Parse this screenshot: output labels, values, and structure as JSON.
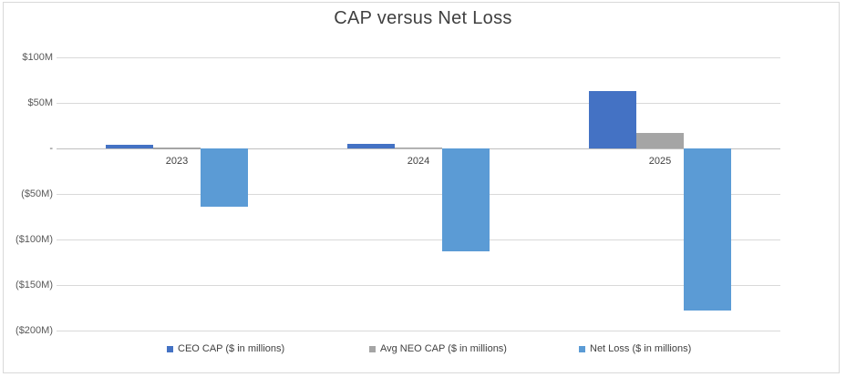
{
  "chart_data": {
    "type": "bar",
    "title": "CAP versus Net Loss",
    "categories": [
      "2023",
      "2024",
      "2025"
    ],
    "series": [
      {
        "name": "CEO CAP ($ in millions)",
        "color": "#4472C4",
        "values": [
          4,
          5,
          63
        ]
      },
      {
        "name": "Avg NEO CAP ($ in millions)",
        "color": "#A5A5A5",
        "values": [
          1.5,
          0.8,
          17
        ]
      },
      {
        "name": "Net Loss ($ in millions)",
        "color": "#5B9BD5",
        "values": [
          -64,
          -113,
          -178
        ]
      }
    ],
    "xlabel": "",
    "ylabel": "",
    "ylim": [
      -200,
      100
    ],
    "yticks": [
      100,
      50,
      0,
      -50,
      -100,
      -150,
      -200
    ],
    "ytick_labels": [
      "$100M",
      "$50M",
      "-",
      "($50M)",
      "($100M)",
      "($150M)",
      "($200M)"
    ],
    "grid": true,
    "legend_position": "bottom"
  },
  "colors": {
    "border": "#D9D9D9",
    "gridline": "#D9D9D9",
    "zero_axis": "#BFBFBF",
    "title_text": "#404040",
    "axis_text": "#595959",
    "label_text": "#404040"
  }
}
